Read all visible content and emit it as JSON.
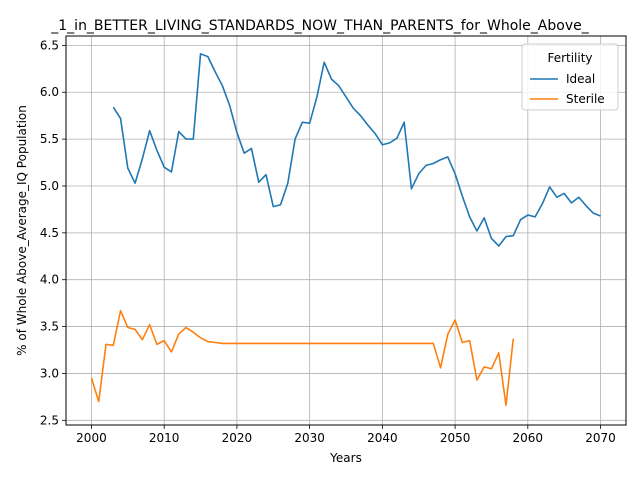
{
  "chart_data": {
    "type": "line",
    "title": "_1_in_BETTER_LIVING_STANDARDS_NOW_THAN_PARENTS_for_Whole_Above_",
    "xlabel": "Years",
    "ylabel": "% of Whole Above_Average_IQ Population",
    "xlim": [
      1996.5,
      2073.5
    ],
    "ylim": [
      2.45,
      6.6
    ],
    "xticks": [
      2000,
      2010,
      2020,
      2030,
      2040,
      2050,
      2060,
      2070
    ],
    "yticks": [
      2.5,
      3.0,
      3.5,
      4.0,
      4.5,
      5.0,
      5.5,
      6.0,
      6.5
    ],
    "grid": true,
    "legend": {
      "title": "Fertility",
      "placement": "top-right"
    },
    "series": [
      {
        "name": "Ideal",
        "color": "#1f77b4",
        "x": [
          2003,
          2004,
          2005,
          2006,
          2007,
          2008,
          2009,
          2010,
          2011,
          2012,
          2013,
          2014,
          2015,
          2016,
          2017,
          2018,
          2019,
          2020,
          2021,
          2022,
          2023,
          2024,
          2025,
          2026,
          2027,
          2028,
          2029,
          2030,
          2031,
          2032,
          2033,
          2034,
          2035,
          2036,
          2037,
          2038,
          2039,
          2040,
          2041,
          2042,
          2043,
          2044,
          2045,
          2046,
          2047,
          2048,
          2049,
          2050,
          2051,
          2052,
          2053,
          2054,
          2055,
          2056,
          2057,
          2058,
          2059,
          2060,
          2061,
          2062,
          2063,
          2064,
          2065,
          2066,
          2067,
          2068,
          2069,
          2070
        ],
        "values": [
          5.84,
          5.72,
          5.19,
          5.03,
          5.29,
          5.59,
          5.38,
          5.2,
          5.15,
          5.58,
          5.5,
          5.5,
          6.41,
          6.38,
          6.22,
          6.07,
          5.86,
          5.57,
          5.35,
          5.4,
          5.04,
          5.12,
          4.78,
          4.8,
          5.03,
          5.5,
          5.68,
          5.67,
          5.95,
          6.32,
          6.14,
          6.07,
          5.95,
          5.83,
          5.75,
          5.65,
          5.56,
          5.44,
          5.46,
          5.51,
          5.68,
          4.97,
          5.13,
          5.22,
          5.24,
          5.28,
          5.31,
          5.13,
          4.89,
          4.67,
          4.52,
          4.66,
          4.44,
          4.36,
          4.46,
          4.47,
          4.64,
          4.69,
          4.67,
          4.81,
          4.99,
          4.88,
          4.92,
          4.82,
          4.88,
          4.79,
          4.71,
          4.68
        ]
      },
      {
        "name": "Sterile",
        "color": "#ff7f0e",
        "x": [
          2000,
          2001,
          2002,
          2003,
          2004,
          2005,
          2006,
          2007,
          2008,
          2009,
          2010,
          2011,
          2012,
          2013,
          2014,
          2015,
          2016,
          2017,
          2018,
          2019,
          2020,
          2021,
          2022,
          2023,
          2024,
          2025,
          2026,
          2027,
          2028,
          2029,
          2030,
          2031,
          2032,
          2033,
          2034,
          2035,
          2036,
          2037,
          2038,
          2039,
          2040,
          2041,
          2042,
          2043,
          2044,
          2045,
          2046,
          2047,
          2048,
          2049,
          2050,
          2051,
          2052,
          2053,
          2054,
          2055,
          2056,
          2057,
          2058
        ],
        "values": [
          2.95,
          2.7,
          3.31,
          3.3,
          3.67,
          3.49,
          3.47,
          3.36,
          3.52,
          3.31,
          3.35,
          3.23,
          3.42,
          3.49,
          3.44,
          3.38,
          3.34,
          3.33,
          3.32,
          3.32,
          3.32,
          3.32,
          3.32,
          3.32,
          3.32,
          3.32,
          3.32,
          3.32,
          3.32,
          3.32,
          3.32,
          3.32,
          3.32,
          3.32,
          3.32,
          3.32,
          3.32,
          3.32,
          3.32,
          3.32,
          3.32,
          3.32,
          3.32,
          3.32,
          3.32,
          3.32,
          3.32,
          3.32,
          3.06,
          3.42,
          3.57,
          3.33,
          3.35,
          2.93,
          3.07,
          3.05,
          3.22,
          2.66,
          3.37
        ]
      }
    ]
  }
}
